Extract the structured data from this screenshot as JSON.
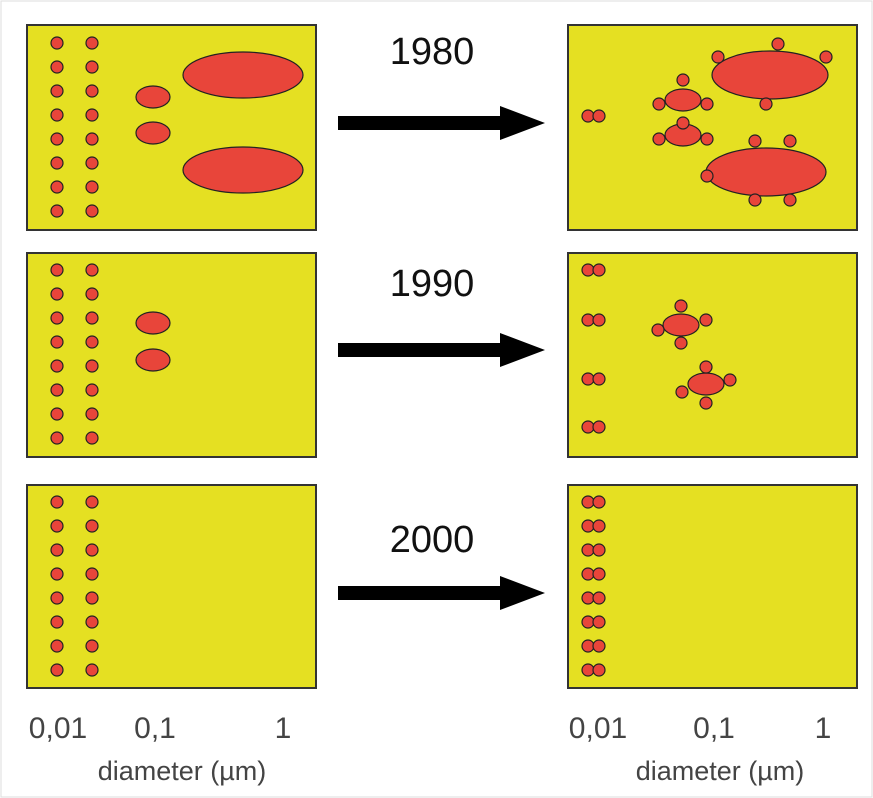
{
  "rows": [
    {
      "year": "1980"
    },
    {
      "year": "1990"
    },
    {
      "year": "2000"
    }
  ],
  "axes": [
    {
      "ticks": [
        "0,01",
        "0,1",
        "1"
      ],
      "label": "diameter (µm)"
    },
    {
      "ticks": [
        "0,01",
        "0,1",
        "1"
      ],
      "label": "diameter (µm)"
    }
  ]
}
